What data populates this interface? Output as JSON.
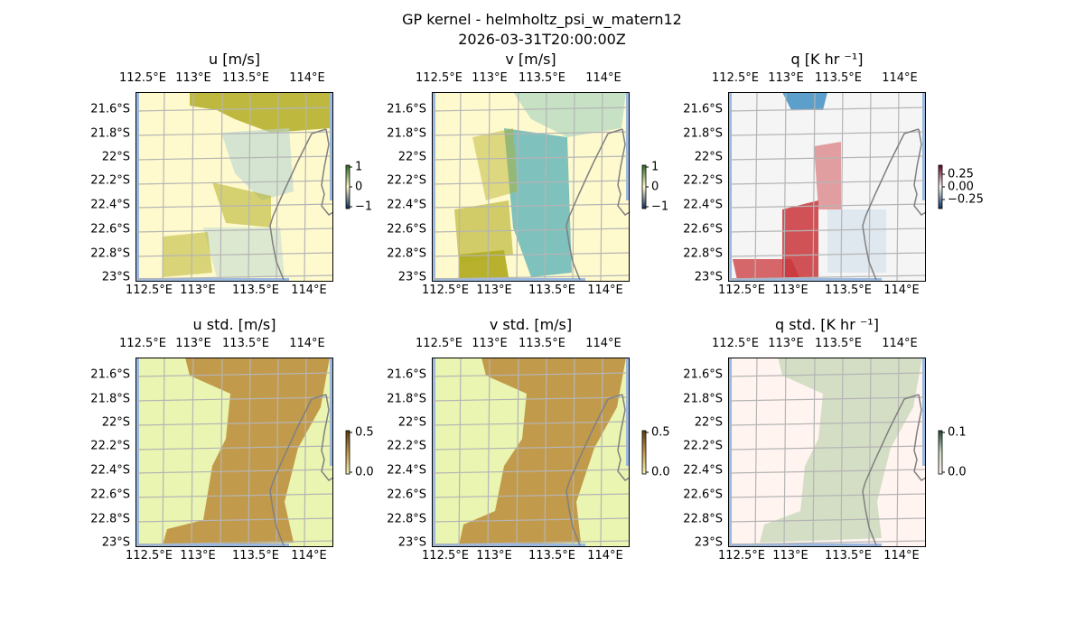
{
  "figure": {
    "title_line1": "GP kernel - helmholtz_psi_w_matern12",
    "title_line2": "2026-03-31T20:00:00Z"
  },
  "chart_data": [
    {
      "type": "heatmap",
      "title": "u [m/s]",
      "x_ticks": [
        "112.5°E",
        "113°E",
        "113.5°E",
        "114°E"
      ],
      "y_ticks": [
        "21.6°S",
        "21.8°S",
        "22°S",
        "22.2°S",
        "22.4°S",
        "22.6°S",
        "22.8°S",
        "23°S"
      ],
      "colorbar": {
        "ticks": [
          "1",
          "0",
          "−1"
        ],
        "range": [
          -1,
          1
        ],
        "cmap": "teal-white-olive"
      },
      "colors": {
        "bg": "#fffacd",
        "pos": "#b3ad24",
        "neg": "#b9d6d3"
      }
    },
    {
      "type": "heatmap",
      "title": "v [m/s]",
      "x_ticks": [
        "112.5°E",
        "113°E",
        "113.5°E",
        "114°E"
      ],
      "y_ticks": [
        "21.6°S",
        "21.8°S",
        "22°S",
        "22.2°S",
        "22.4°S",
        "22.6°S",
        "22.8°S",
        "23°S"
      ],
      "colorbar": {
        "ticks": [
          "1",
          "0",
          "−1"
        ],
        "range": [
          -1,
          1
        ],
        "cmap": "teal-white-olive"
      },
      "colors": {
        "bg": "#fffacd",
        "pos": "#b3ad24",
        "neg": "#5fb3b8"
      }
    },
    {
      "type": "heatmap",
      "title": "q [K hr ⁻¹]",
      "x_ticks": [
        "112.5°E",
        "113°E",
        "113.5°E",
        "114°E"
      ],
      "y_ticks": [
        "21.6°S",
        "21.8°S",
        "22°S",
        "22.2°S",
        "22.4°S",
        "22.6°S",
        "22.8°S",
        "23°S"
      ],
      "colorbar": {
        "ticks": [
          "0.25",
          "0.00",
          "−0.25"
        ],
        "range": [
          -0.35,
          0.35
        ],
        "cmap": "RdBu_r"
      },
      "colors": {
        "bg": "#f5f5f5",
        "pos": "#c9353a",
        "neg": "#3f8fc2"
      }
    },
    {
      "type": "heatmap",
      "title": "u std. [m/s]",
      "x_ticks": [
        "112.5°E",
        "113°E",
        "113.5°E",
        "114°E"
      ],
      "y_ticks": [
        "21.6°S",
        "21.8°S",
        "22°S",
        "22.2°S",
        "22.4°S",
        "22.6°S",
        "22.8°S",
        "23°S"
      ],
      "colorbar": {
        "ticks": [
          "0.5",
          "0.0"
        ],
        "range": [
          0,
          0.5
        ],
        "cmap": "yellow-brown"
      },
      "colors": {
        "bg": "#e9f5b0",
        "pos": "#c29a4b"
      }
    },
    {
      "type": "heatmap",
      "title": "v std. [m/s]",
      "x_ticks": [
        "112.5°E",
        "113°E",
        "113.5°E",
        "114°E"
      ],
      "y_ticks": [
        "21.6°S",
        "21.8°S",
        "22°S",
        "22.2°S",
        "22.4°S",
        "22.6°S",
        "22.8°S",
        "23°S"
      ],
      "colorbar": {
        "ticks": [
          "0.5",
          "0.0"
        ],
        "range": [
          0,
          0.5
        ],
        "cmap": "yellow-brown"
      },
      "colors": {
        "bg": "#e9f5b0",
        "pos": "#c29a4b"
      }
    },
    {
      "type": "heatmap",
      "title": "q std. [K hr ⁻¹]",
      "x_ticks": [
        "112.5°E",
        "113°E",
        "113.5°E",
        "114°E"
      ],
      "y_ticks": [
        "21.6°S",
        "21.8°S",
        "22°S",
        "22.2°S",
        "22.4°S",
        "22.6°S",
        "22.8°S",
        "23°S"
      ],
      "colorbar": {
        "ticks": [
          "0.1",
          "0.0"
        ],
        "range": [
          0,
          0.1
        ],
        "cmap": "pink-green"
      },
      "colors": {
        "bg": "#fff4f0",
        "pos": "#cdd9bd"
      }
    }
  ]
}
